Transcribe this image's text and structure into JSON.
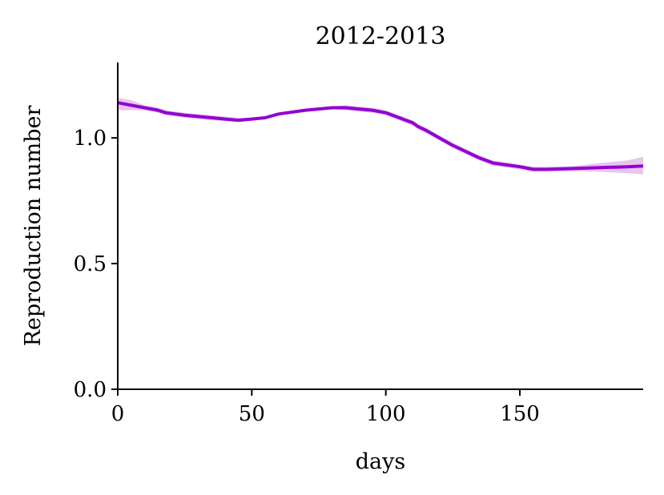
{
  "chart_data": {
    "type": "line",
    "title": "2012-2013",
    "xlabel": "days",
    "ylabel": "Reproduction number",
    "xlim": [
      0,
      196
    ],
    "ylim": [
      0,
      1.3
    ],
    "xticks": [
      0,
      50,
      100,
      150
    ],
    "xtick_labels": [
      "0",
      "50",
      "100",
      "150"
    ],
    "yticks": [
      0.0,
      0.5,
      1.0
    ],
    "ytick_labels": [
      "0.0",
      "0.5",
      "1.0"
    ],
    "grid": false,
    "colors": {
      "line": "#9400d3",
      "band": "#e7c6ee"
    },
    "series": [
      {
        "x": [
          0,
          5,
          10,
          15,
          18,
          25,
          35,
          45,
          50,
          55,
          60,
          70,
          80,
          85,
          90,
          95,
          100,
          105,
          110,
          112,
          115,
          120,
          125,
          130,
          135,
          140,
          150,
          155,
          160,
          170,
          180,
          190,
          196
        ],
        "y": [
          1.14,
          1.13,
          1.12,
          1.11,
          1.1,
          1.09,
          1.08,
          1.07,
          1.075,
          1.08,
          1.095,
          1.11,
          1.12,
          1.12,
          1.115,
          1.11,
          1.1,
          1.08,
          1.06,
          1.045,
          1.03,
          1.0,
          0.97,
          0.945,
          0.92,
          0.9,
          0.885,
          0.875,
          0.875,
          0.878,
          0.882,
          0.885,
          0.888
        ],
        "lower": [
          1.11,
          1.11,
          1.11,
          1.1,
          1.09,
          1.08,
          1.07,
          1.065,
          1.07,
          1.075,
          1.09,
          1.105,
          1.115,
          1.11,
          1.105,
          1.1,
          1.09,
          1.07,
          1.05,
          1.035,
          1.02,
          0.99,
          0.96,
          0.935,
          0.91,
          0.89,
          0.875,
          0.865,
          0.865,
          0.868,
          0.865,
          0.86,
          0.855
        ],
        "upper": [
          1.16,
          1.15,
          1.13,
          1.12,
          1.11,
          1.1,
          1.09,
          1.08,
          1.08,
          1.085,
          1.1,
          1.115,
          1.125,
          1.13,
          1.125,
          1.12,
          1.11,
          1.09,
          1.07,
          1.055,
          1.04,
          1.01,
          0.98,
          0.955,
          0.93,
          0.91,
          0.895,
          0.885,
          0.885,
          0.888,
          0.9,
          0.91,
          0.925
        ]
      }
    ]
  }
}
